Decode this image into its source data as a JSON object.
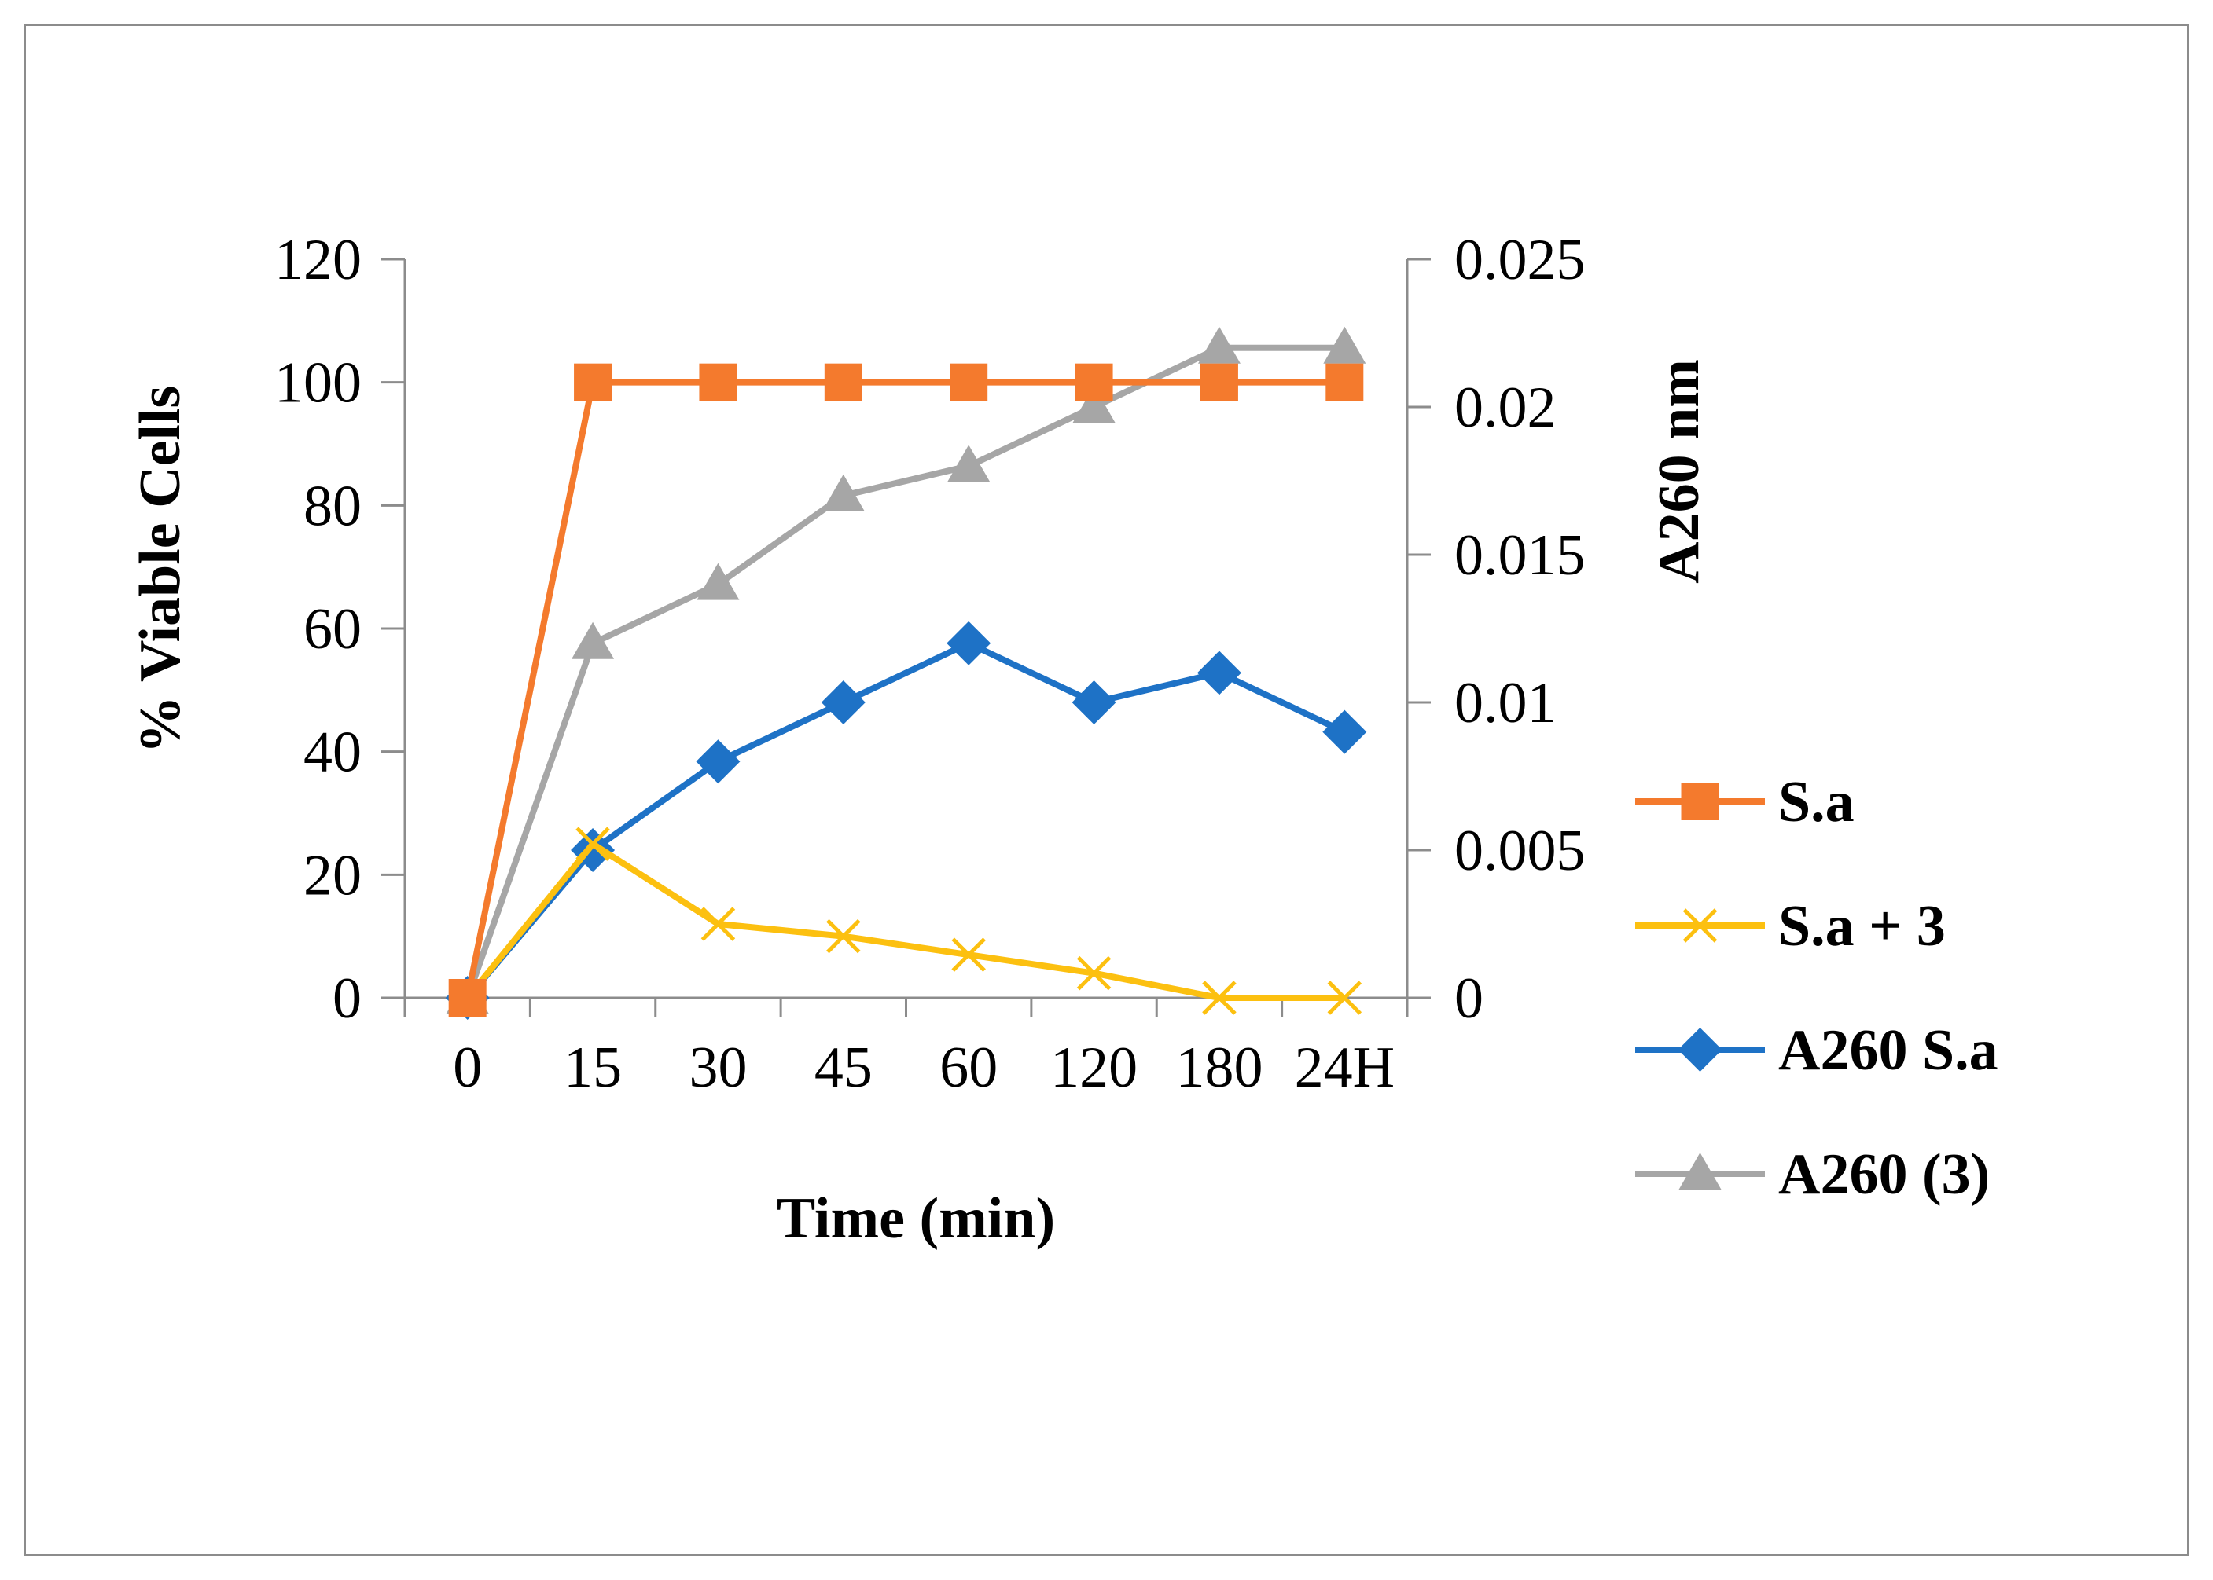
{
  "chart_data": {
    "type": "line",
    "categories": [
      "0",
      "15",
      "30",
      "45",
      "60",
      "120",
      "180",
      "24H"
    ],
    "xlabel": "Time (min)",
    "ylabel": "%  Viable Cells",
    "y2label": "A260 nm",
    "ylim": [
      0,
      120
    ],
    "y2lim": [
      0,
      0.025
    ],
    "yticks": [
      "0",
      "20",
      "40",
      "60",
      "80",
      "100",
      "120"
    ],
    "y2ticks": [
      "0",
      "0.005",
      "0.01",
      "0.015",
      "0.02",
      "0.025"
    ],
    "grid": false,
    "legend_position": "right",
    "series": [
      {
        "name": "S.a",
        "axis": "left",
        "color": "#f47a2d",
        "marker": "square",
        "values": [
          0,
          100,
          100,
          100,
          100,
          100,
          100,
          100
        ]
      },
      {
        "name": "S.a + 3",
        "axis": "left",
        "color": "#fcc010",
        "marker": "x",
        "values": [
          0,
          25,
          12,
          10,
          7,
          4,
          0,
          0
        ]
      },
      {
        "name": "A260 S.a",
        "axis": "right",
        "color": "#1e72c6",
        "marker": "diamond",
        "values": [
          0,
          0.005,
          0.008,
          0.01,
          0.012,
          0.01,
          0.011,
          0.009
        ]
      },
      {
        "name": "A260 (3)",
        "axis": "right",
        "color": "#a6a6a6",
        "marker": "triangle",
        "values": [
          0,
          0.012,
          0.014,
          0.017,
          0.018,
          0.02,
          0.022,
          0.022
        ]
      }
    ]
  }
}
